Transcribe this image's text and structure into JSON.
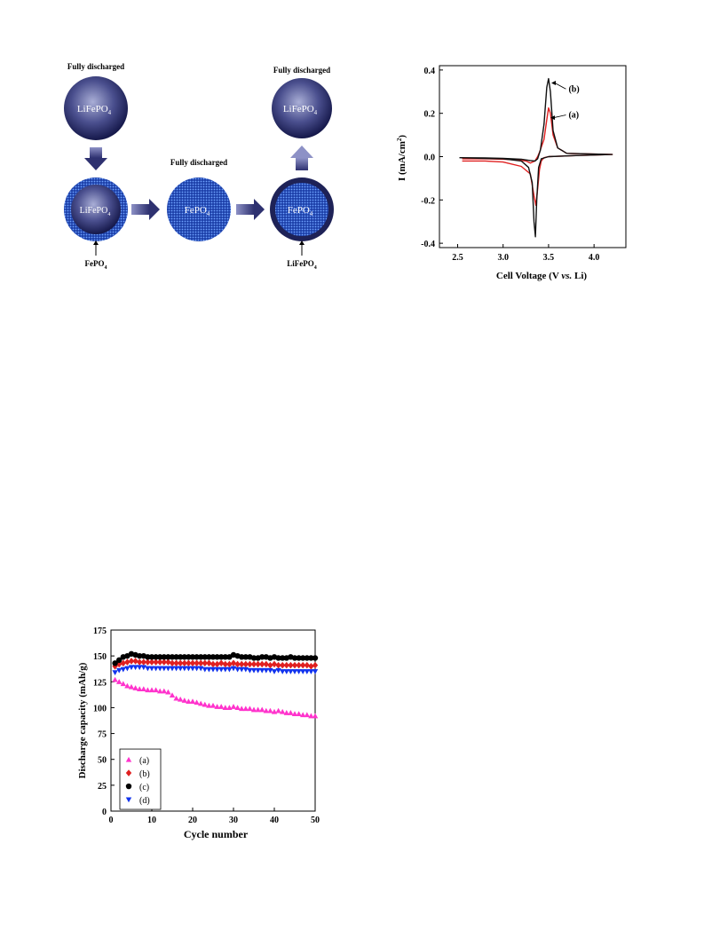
{
  "diagram": {
    "top_left_label": "Fully discharged",
    "top_left_sphere": "LiFePO",
    "top_right_label": "Fully discharged",
    "top_right_sphere": "LiFePO",
    "middle_label": "Fully discharged",
    "core_left_sphere": "LiFePO",
    "center_sphere": "FePO",
    "core_right_sphere": "FePO",
    "bottom_left_label": "FePO",
    "bottom_right_label": "LiFePO",
    "subscript": "4"
  },
  "cv_chart": {
    "chart_data": {
      "type": "line",
      "title": "",
      "xlabel_main": "Cell Voltage (V ",
      "xlabel_italic": "vs.",
      "xlabel_end": " Li)",
      "ylabel": "I (mA/cm",
      "ylabel_sup": "2",
      "ylabel_end": ")",
      "xlim": [
        2.3,
        4.35
      ],
      "ylim": [
        -0.42,
        0.42
      ],
      "xticks": [
        "2.5",
        "3.0",
        "3.5",
        "4.0"
      ],
      "xtick_values": [
        2.5,
        3.0,
        3.5,
        4.0
      ],
      "yticks": [
        "0.4",
        "0.2",
        "0.0",
        "-0.2",
        "-0.4"
      ],
      "ytick_values": [
        0.4,
        0.2,
        0.0,
        -0.2,
        -0.4
      ],
      "series": [
        {
          "name": "(a)",
          "color": "#e02020",
          "x": [
            2.55,
            2.8,
            3.0,
            3.15,
            3.25,
            3.3,
            3.35,
            3.38,
            3.4,
            3.45,
            3.48,
            3.5,
            3.52,
            3.55,
            3.6,
            3.7,
            4.2,
            3.8,
            3.5,
            3.45,
            3.42,
            3.4,
            3.38,
            3.36,
            3.34,
            3.3,
            3.2,
            3.0,
            2.8,
            2.55
          ],
          "y": [
            -0.01,
            -0.01,
            -0.012,
            -0.015,
            -0.02,
            -0.03,
            -0.02,
            0.0,
            0.02,
            0.08,
            0.17,
            0.225,
            0.2,
            0.1,
            0.04,
            0.015,
            0.01,
            0.005,
            0.0,
            -0.005,
            -0.02,
            -0.06,
            -0.15,
            -0.225,
            -0.18,
            -0.08,
            -0.045,
            -0.025,
            -0.02,
            -0.02
          ]
        },
        {
          "name": "(b)",
          "color": "#111111",
          "x": [
            2.52,
            2.8,
            3.0,
            3.2,
            3.3,
            3.35,
            3.38,
            3.41,
            3.45,
            3.48,
            3.5,
            3.52,
            3.55,
            3.6,
            3.7,
            4.2,
            3.8,
            3.5,
            3.42,
            3.39,
            3.37,
            3.355,
            3.34,
            3.32,
            3.28,
            3.2,
            3.0,
            2.8,
            2.52
          ],
          "y": [
            -0.005,
            -0.006,
            -0.008,
            -0.012,
            -0.018,
            -0.02,
            -0.01,
            0.03,
            0.15,
            0.32,
            0.36,
            0.3,
            0.12,
            0.04,
            0.015,
            0.01,
            0.005,
            0.0,
            -0.01,
            -0.05,
            -0.2,
            -0.37,
            -0.3,
            -0.12,
            -0.05,
            -0.02,
            -0.01,
            -0.008,
            -0.005
          ]
        }
      ],
      "annotations": [
        {
          "text": "(b)",
          "x": 3.72,
          "y": 0.3,
          "arrow_to": [
            3.53,
            0.34
          ]
        },
        {
          "text": "(a)",
          "x": 3.72,
          "y": 0.18,
          "arrow_to": [
            3.52,
            0.18
          ]
        }
      ]
    }
  },
  "cycle_chart": {
    "chart_data": {
      "type": "scatter",
      "title": "",
      "xlabel": "Cycle number",
      "ylabel": "Discharge capacity (mAh/g)",
      "xlim": [
        0,
        50
      ],
      "ylim": [
        0,
        175
      ],
      "xticks": [
        "0",
        "10",
        "20",
        "30",
        "40",
        "50"
      ],
      "xtick_values": [
        0,
        10,
        20,
        30,
        40,
        50
      ],
      "yticks": [
        "0",
        "25",
        "50",
        "75",
        "100",
        "125",
        "150",
        "175"
      ],
      "ytick_values": [
        0,
        25,
        50,
        75,
        100,
        125,
        150,
        175
      ],
      "legend_position": "bottom-left",
      "series": [
        {
          "name": "(a)",
          "marker": "triangle-up",
          "color": "#ff33cc",
          "x": [
            1,
            2,
            3,
            4,
            5,
            6,
            7,
            8,
            9,
            10,
            11,
            12,
            13,
            14,
            15,
            16,
            17,
            18,
            19,
            20,
            21,
            22,
            23,
            24,
            25,
            26,
            27,
            28,
            29,
            30,
            31,
            32,
            33,
            34,
            35,
            36,
            37,
            38,
            39,
            40,
            41,
            42,
            43,
            44,
            45,
            46,
            47,
            48,
            49,
            50
          ],
          "values": [
            127,
            125,
            123,
            121,
            120,
            119,
            118,
            118,
            117,
            117,
            117,
            116,
            116,
            115,
            112,
            109,
            108,
            107,
            106,
            106,
            105,
            104,
            103,
            102,
            102,
            101,
            101,
            100,
            100,
            101,
            100,
            99,
            99,
            99,
            98,
            98,
            98,
            97,
            97,
            96,
            97,
            96,
            95,
            95,
            94,
            94,
            93,
            93,
            92,
            92
          ]
        },
        {
          "name": "(b)",
          "marker": "diamond",
          "color": "#e02020",
          "x": [
            1,
            2,
            3,
            4,
            5,
            6,
            7,
            8,
            9,
            10,
            11,
            12,
            13,
            14,
            15,
            16,
            17,
            18,
            19,
            20,
            21,
            22,
            23,
            24,
            25,
            26,
            27,
            28,
            29,
            30,
            31,
            32,
            33,
            34,
            35,
            36,
            37,
            38,
            39,
            40,
            41,
            42,
            43,
            44,
            45,
            46,
            47,
            48,
            49,
            50
          ],
          "values": [
            140,
            142,
            143,
            144,
            145,
            145,
            144,
            144,
            144,
            144,
            144,
            144,
            144,
            144,
            143,
            143,
            143,
            143,
            143,
            143,
            143,
            143,
            143,
            143,
            142,
            142,
            143,
            142,
            142,
            143,
            142,
            142,
            142,
            142,
            142,
            142,
            142,
            142,
            141,
            142,
            141,
            141,
            141,
            141,
            141,
            141,
            141,
            141,
            140,
            141
          ]
        },
        {
          "name": "(c)",
          "marker": "circle",
          "color": "#000000",
          "x": [
            1,
            2,
            3,
            4,
            5,
            6,
            7,
            8,
            9,
            10,
            11,
            12,
            13,
            14,
            15,
            16,
            17,
            18,
            19,
            20,
            21,
            22,
            23,
            24,
            25,
            26,
            27,
            28,
            29,
            30,
            31,
            32,
            33,
            34,
            35,
            36,
            37,
            38,
            39,
            40,
            41,
            42,
            43,
            44,
            45,
            46,
            47,
            48,
            49,
            50
          ],
          "values": [
            143,
            146,
            149,
            150,
            152,
            151,
            150,
            150,
            149,
            149,
            149,
            149,
            149,
            149,
            149,
            149,
            149,
            149,
            149,
            149,
            149,
            149,
            149,
            149,
            149,
            149,
            149,
            149,
            149,
            151,
            150,
            149,
            149,
            149,
            148,
            148,
            149,
            149,
            148,
            149,
            148,
            148,
            148,
            149,
            148,
            148,
            148,
            148,
            148,
            148
          ]
        },
        {
          "name": "(d)",
          "marker": "triangle-down",
          "color": "#1133ee",
          "x": [
            1,
            2,
            3,
            4,
            5,
            6,
            7,
            8,
            9,
            10,
            11,
            12,
            13,
            14,
            15,
            16,
            17,
            18,
            19,
            20,
            21,
            22,
            23,
            24,
            25,
            26,
            27,
            28,
            29,
            30,
            31,
            32,
            33,
            34,
            35,
            36,
            37,
            38,
            39,
            40,
            41,
            42,
            43,
            44,
            45,
            46,
            47,
            48,
            49,
            50
          ],
          "values": [
            134,
            136,
            137,
            138,
            139,
            139,
            139,
            139,
            138,
            138,
            138,
            138,
            138,
            138,
            138,
            138,
            138,
            138,
            138,
            138,
            138,
            138,
            137,
            137,
            137,
            137,
            137,
            137,
            137,
            138,
            137,
            137,
            137,
            136,
            136,
            136,
            136,
            136,
            136,
            135,
            136,
            135,
            135,
            135,
            135,
            135,
            135,
            135,
            135,
            135
          ]
        }
      ]
    }
  }
}
